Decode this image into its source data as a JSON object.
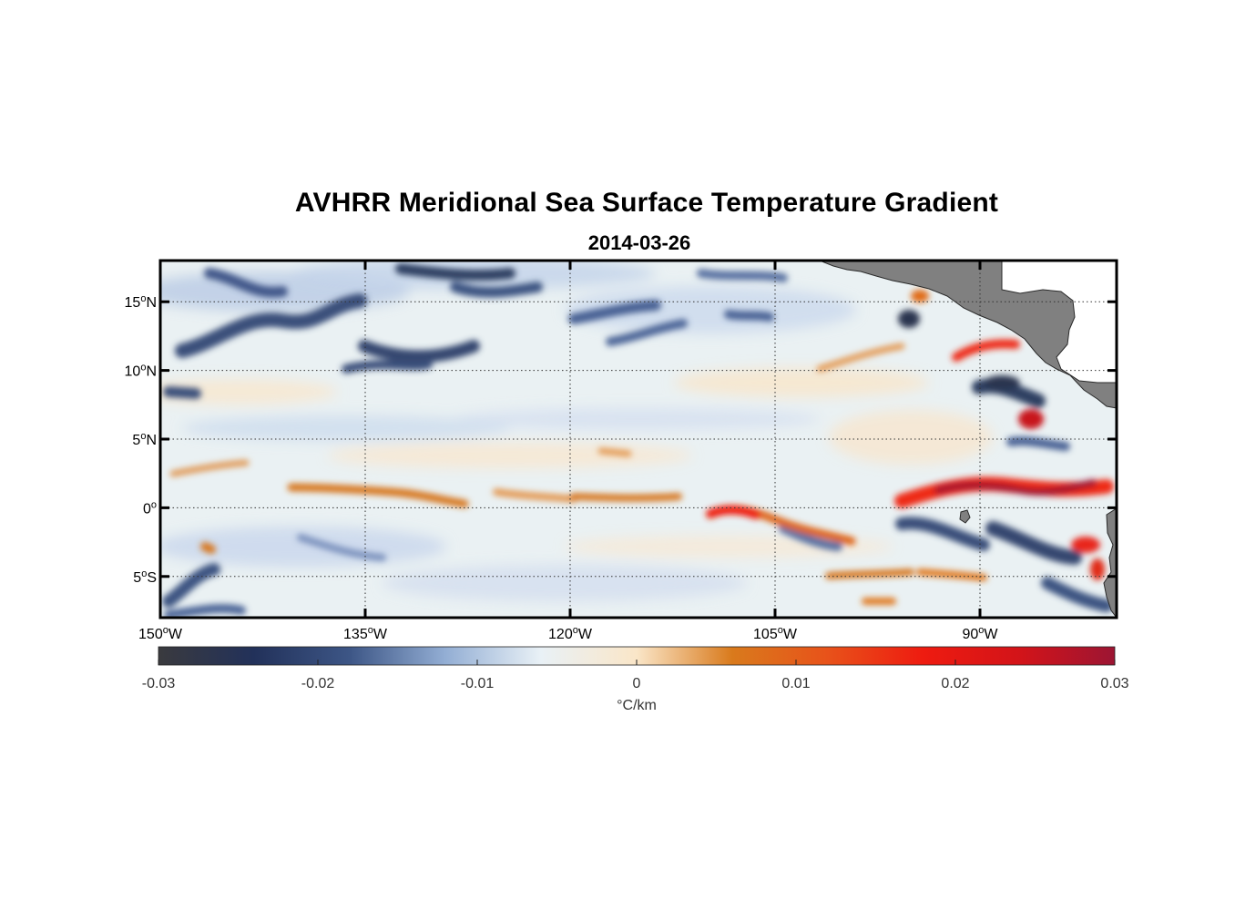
{
  "title": "AVHRR Meridional Sea Surface Temperature Gradient",
  "subtitle": "2014-03-26",
  "map": {
    "lon_range": [
      -150,
      -80
    ],
    "lat_range": [
      -8,
      18
    ],
    "lat_ticks": [
      {
        "value": 15,
        "num": "15",
        "hemi": "N"
      },
      {
        "value": 10,
        "num": "10",
        "hemi": "N"
      },
      {
        "value": 5,
        "num": "5",
        "hemi": "N"
      },
      {
        "value": 0,
        "num": "0",
        "hemi": ""
      },
      {
        "value": -5,
        "num": "5",
        "hemi": "S"
      }
    ],
    "lon_ticks": [
      {
        "value": -150,
        "num": "150",
        "hemi": "W"
      },
      {
        "value": -135,
        "num": "135",
        "hemi": "W"
      },
      {
        "value": -120,
        "num": "120",
        "hemi": "W"
      },
      {
        "value": -105,
        "num": "105",
        "hemi": "W"
      },
      {
        "value": -90,
        "num": "90",
        "hemi": "W"
      }
    ],
    "degree_symbol": "o",
    "grid": "dotted",
    "land_color": "#808080"
  },
  "colorbar": {
    "min": -0.03,
    "max": 0.03,
    "ticks": [
      "-0.03",
      "-0.02",
      "-0.01",
      "0",
      "0.01",
      "0.02",
      "0.03"
    ],
    "unit_label": "°C/km",
    "colors": [
      "#3a3a3e",
      "#22315a",
      "#3d5686",
      "#93aed4",
      "#e9f1f6",
      "#fae6c8",
      "#d97a1c",
      "#e8521a",
      "#ee1b10",
      "#d31419",
      "#9c1533"
    ]
  },
  "chart_data": {
    "type": "heatmap",
    "title": "AVHRR Meridional Sea Surface Temperature Gradient",
    "subtitle": "2014-03-26",
    "unit": "°C/km",
    "value_range": [
      -0.03,
      0.03
    ],
    "x_range": [
      -150,
      -80
    ],
    "y_range": [
      -8,
      18
    ],
    "features": [
      {
        "lon": [
          -142,
          -128
        ],
        "lat": [
          1,
          2
        ],
        "value": 0.008
      },
      {
        "lon": [
          -120,
          -112
        ],
        "lat": [
          0,
          1
        ],
        "value": 0.01
      },
      {
        "lon": [
          -110,
          -100
        ],
        "lat": [
          -2,
          0
        ],
        "value": 0.02
      },
      {
        "lon": [
          -93,
          -80
        ],
        "lat": [
          0.5,
          2.5
        ],
        "value": 0.028
      },
      {
        "lon": [
          -88,
          -86
        ],
        "lat": [
          6,
          7.5
        ],
        "value": 0.027
      },
      {
        "lon": [
          -92,
          -89
        ],
        "lat": [
          11,
          13
        ],
        "value": 0.022
      },
      {
        "lon": [
          -145,
          -130
        ],
        "lat": [
          12,
          15
        ],
        "value": -0.025
      },
      {
        "lon": [
          -135,
          -125
        ],
        "lat": [
          10,
          12
        ],
        "value": -0.025
      },
      {
        "lon": [
          -94,
          -82
        ],
        "lat": [
          -3,
          -1
        ],
        "value": -0.022
      },
      {
        "lon": [
          -92,
          -86
        ],
        "lat": [
          8,
          10
        ],
        "value": -0.022
      }
    ]
  }
}
